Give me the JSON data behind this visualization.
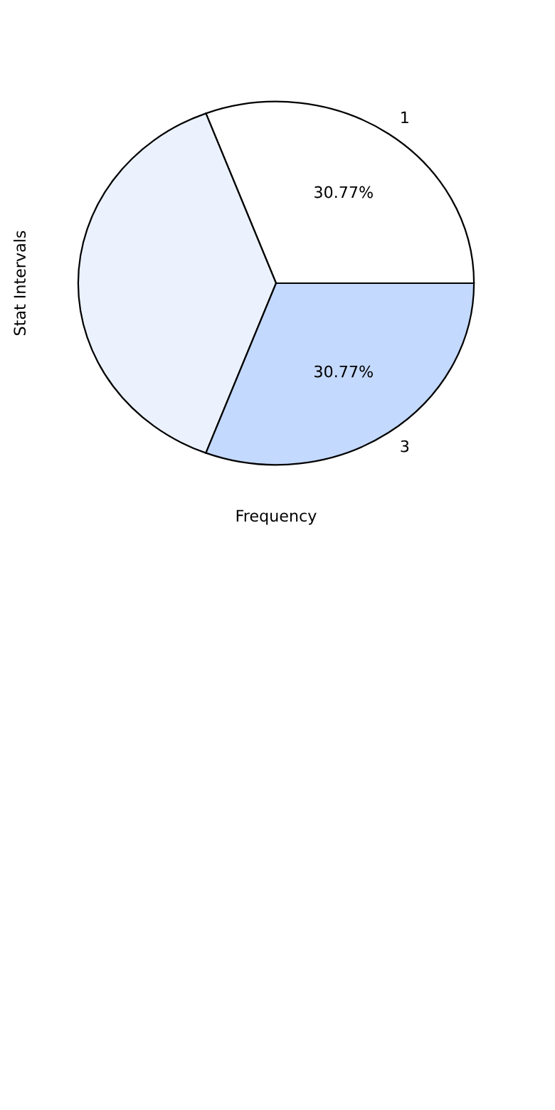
{
  "chart_data": {
    "type": "pie",
    "xlabel": "Frequency",
    "ylabel": "Stat Intervals",
    "categories": [
      "1",
      null,
      "3"
    ],
    "values": [
      30.77,
      38.46,
      30.77
    ],
    "colors": [
      "#ffffff",
      "#ebf2fe",
      "#c4d9fe"
    ],
    "value_labels": [
      "30.77%",
      null,
      "30.77%"
    ]
  }
}
